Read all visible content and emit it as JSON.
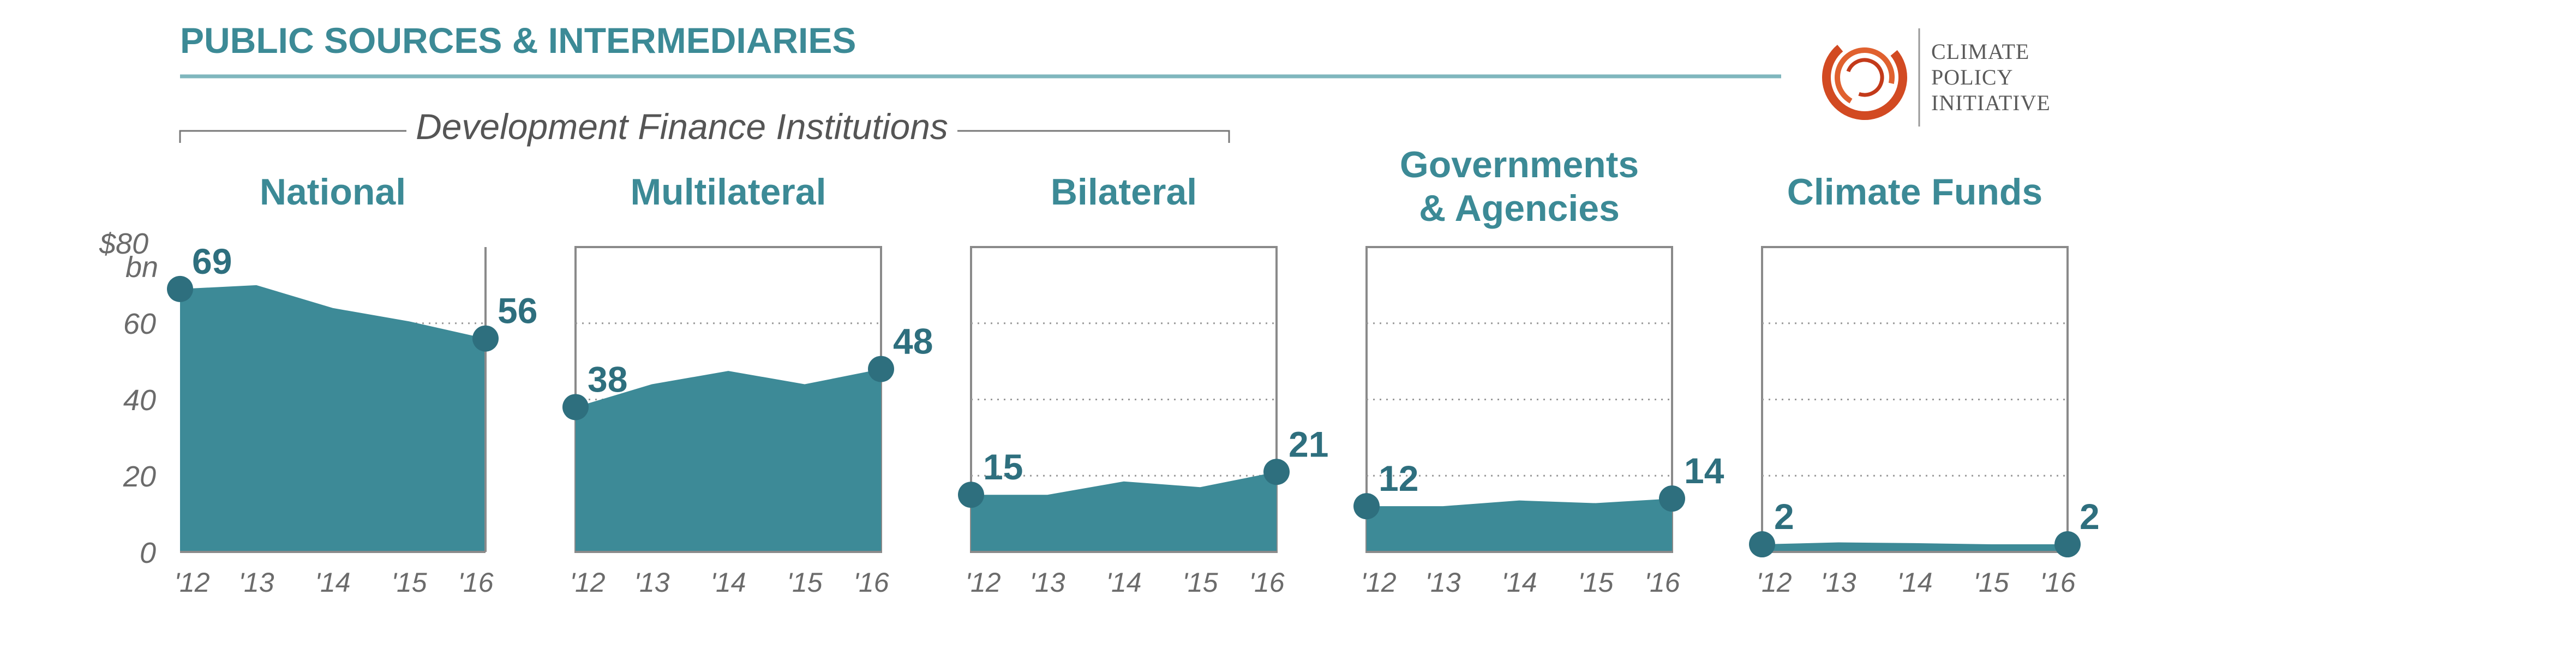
{
  "header": {
    "title": "PUBLIC SOURCES & INTERMEDIARIES",
    "bracket_label": "Development Finance Institutions",
    "logo_lines": [
      "CLIMATE",
      "POLICY",
      "INITIATIVE"
    ]
  },
  "colors": {
    "accent": "#3c8a96",
    "area": "#3d8a97",
    "marker": "#2e6f7e",
    "rule": "#7fb6bd"
  },
  "axis": {
    "unit_top": "$80",
    "unit_bottom": "bn",
    "yticks": [
      "60",
      "40",
      "20",
      "0"
    ]
  },
  "chart_data": [
    {
      "type": "area",
      "title": "National",
      "x": [
        "'12",
        "'13",
        "'14",
        "'15",
        "'16"
      ],
      "values": [
        69,
        70,
        64,
        60.5,
        56
      ],
      "labels": {
        "first": "69",
        "last": "56"
      },
      "ylim": [
        0,
        80
      ]
    },
    {
      "type": "area",
      "title": "Multilateral",
      "x": [
        "'12",
        "'13",
        "'14",
        "'15",
        "'16"
      ],
      "values": [
        38,
        44,
        47.5,
        44,
        48
      ],
      "labels": {
        "first": "38",
        "last": "48"
      },
      "ylim": [
        0,
        80
      ]
    },
    {
      "type": "area",
      "title": "Bilateral",
      "x": [
        "'12",
        "'13",
        "'14",
        "'15",
        "'16"
      ],
      "values": [
        15,
        15,
        18.5,
        17,
        21
      ],
      "labels": {
        "first": "15",
        "last": "21"
      },
      "ylim": [
        0,
        80
      ]
    },
    {
      "type": "area",
      "title_lines": [
        "Governments",
        "& Agencies"
      ],
      "x": [
        "'12",
        "'13",
        "'14",
        "'15",
        "'16"
      ],
      "values": [
        12,
        12,
        13.5,
        12.8,
        14
      ],
      "labels": {
        "first": "12",
        "last": "14"
      },
      "ylim": [
        0,
        80
      ]
    },
    {
      "type": "area",
      "title": "Climate Funds",
      "x": [
        "'12",
        "'13",
        "'14",
        "'15",
        "'16"
      ],
      "values": [
        2,
        2.5,
        2.3,
        2,
        2
      ],
      "labels": {
        "first": "2",
        "last": "2"
      },
      "ylim": [
        0,
        80
      ]
    }
  ]
}
